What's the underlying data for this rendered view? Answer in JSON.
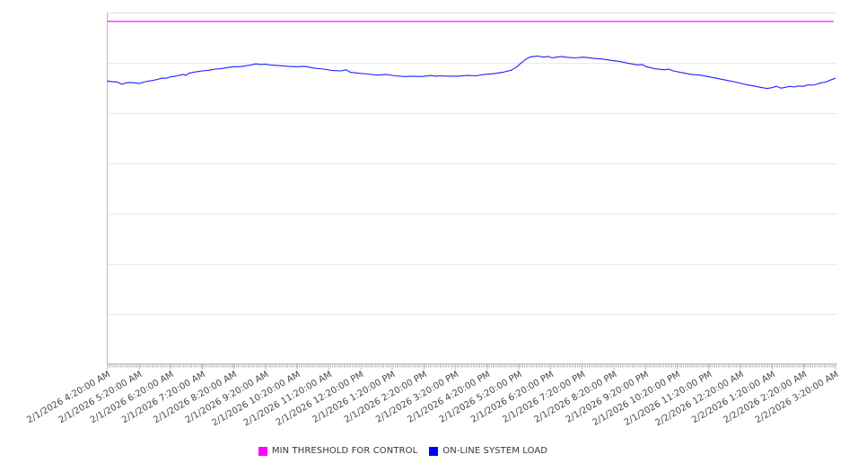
{
  "legend": {
    "items": [
      {
        "label": "MIN THRESHOLD FOR CONTROL",
        "color": "#ff00ff"
      },
      {
        "label": "ON-LINE SYSTEM LOAD",
        "color": "#0000ff"
      }
    ]
  },
  "chart_data": {
    "type": "line",
    "title": "",
    "legend_position": "bottom-center",
    "grid": "horizontal-only",
    "x_axis": {
      "label_rotation_deg": -30,
      "tick_labels": [
        "2/1/2026 4:20:00 AM",
        "2/1/2026 5:20:00 AM",
        "2/1/2026 6:20:00 AM",
        "2/1/2026 7:20:00 AM",
        "2/1/2026 8:20:00 AM",
        "2/1/2026 9:20:00 AM",
        "2/1/2026 10:20:00 AM",
        "2/1/2026 11:20:00 AM",
        "2/1/2026 12:20:00 PM",
        "2/1/2026 1:20:00 PM",
        "2/1/2026 2:20:00 PM",
        "2/1/2026 3:20:00 PM",
        "2/1/2026 4:20:00 PM",
        "2/1/2026 5:20:00 PM",
        "2/1/2026 6:20:00 PM",
        "2/1/2026 7:20:00 PM",
        "2/1/2026 8:20:00 PM",
        "2/1/2026 9:20:00 PM",
        "2/1/2026 10:20:00 PM",
        "2/1/2026 11:20:00 PM",
        "2/2/2026 12:20:00 AM",
        "2/2/2026 1:20:00 AM",
        "2/2/2026 2:20:00 AM",
        "2/2/2026 3:20:00 AM"
      ]
    },
    "y_axis": {
      "tick_labels": [],
      "gridline_count": 6,
      "range_pct": [
        0,
        100
      ],
      "note": "no visible y-axis labels; series values estimated as percent of plot height"
    },
    "series": [
      {
        "name": "MIN THRESHOLD FOR CONTROL",
        "type": "threshold-line",
        "color": "#ff00ff",
        "value_pct": 97.5
      },
      {
        "name": "ON-LINE SYSTEM LOAD",
        "type": "line",
        "color": "#0000ff",
        "points_xfrac_valuepct": [
          [
            0.0,
            80.5
          ],
          [
            0.007,
            80.3
          ],
          [
            0.014,
            80.2
          ],
          [
            0.02,
            79.6
          ],
          [
            0.026,
            80.0
          ],
          [
            0.032,
            80.1
          ],
          [
            0.038,
            80.0
          ],
          [
            0.044,
            79.8
          ],
          [
            0.05,
            80.2
          ],
          [
            0.057,
            80.5
          ],
          [
            0.063,
            80.7
          ],
          [
            0.069,
            81.0
          ],
          [
            0.075,
            81.3
          ],
          [
            0.081,
            81.3
          ],
          [
            0.087,
            81.7
          ],
          [
            0.094,
            81.9
          ],
          [
            0.1,
            82.2
          ],
          [
            0.105,
            82.4
          ],
          [
            0.108,
            82.1
          ],
          [
            0.112,
            82.7
          ],
          [
            0.118,
            83.0
          ],
          [
            0.124,
            83.2
          ],
          [
            0.131,
            83.4
          ],
          [
            0.137,
            83.5
          ],
          [
            0.143,
            83.7
          ],
          [
            0.149,
            83.9
          ],
          [
            0.155,
            84.0
          ],
          [
            0.161,
            84.2
          ],
          [
            0.167,
            84.4
          ],
          [
            0.174,
            84.6
          ],
          [
            0.18,
            84.6
          ],
          [
            0.186,
            84.7
          ],
          [
            0.192,
            84.9
          ],
          [
            0.198,
            85.1
          ],
          [
            0.204,
            85.4
          ],
          [
            0.211,
            85.2
          ],
          [
            0.217,
            85.3
          ],
          [
            0.223,
            85.1
          ],
          [
            0.235,
            84.9
          ],
          [
            0.248,
            84.7
          ],
          [
            0.26,
            84.6
          ],
          [
            0.272,
            84.7
          ],
          [
            0.284,
            84.2
          ],
          [
            0.297,
            83.9
          ],
          [
            0.309,
            83.5
          ],
          [
            0.321,
            83.4
          ],
          [
            0.328,
            83.7
          ],
          [
            0.334,
            83.0
          ],
          [
            0.346,
            82.7
          ],
          [
            0.358,
            82.5
          ],
          [
            0.371,
            82.2
          ],
          [
            0.383,
            82.4
          ],
          [
            0.395,
            82.0
          ],
          [
            0.408,
            81.8
          ],
          [
            0.42,
            81.9
          ],
          [
            0.432,
            81.8
          ],
          [
            0.445,
            82.1
          ],
          [
            0.451,
            81.9
          ],
          [
            0.457,
            82.0
          ],
          [
            0.469,
            81.9
          ],
          [
            0.481,
            81.9
          ],
          [
            0.494,
            82.1
          ],
          [
            0.506,
            82.0
          ],
          [
            0.518,
            82.4
          ],
          [
            0.531,
            82.6
          ],
          [
            0.543,
            83.0
          ],
          [
            0.555,
            83.6
          ],
          [
            0.562,
            84.5
          ],
          [
            0.568,
            85.6
          ],
          [
            0.574,
            86.6
          ],
          [
            0.58,
            87.3
          ],
          [
            0.586,
            87.5
          ],
          [
            0.592,
            87.6
          ],
          [
            0.599,
            87.3
          ],
          [
            0.605,
            87.5
          ],
          [
            0.611,
            87.1
          ],
          [
            0.617,
            87.3
          ],
          [
            0.623,
            87.5
          ],
          [
            0.629,
            87.3
          ],
          [
            0.642,
            87.1
          ],
          [
            0.654,
            87.3
          ],
          [
            0.666,
            87.0
          ],
          [
            0.679,
            86.8
          ],
          [
            0.691,
            86.4
          ],
          [
            0.703,
            86.1
          ],
          [
            0.715,
            85.6
          ],
          [
            0.728,
            85.1
          ],
          [
            0.734,
            85.2
          ],
          [
            0.74,
            84.6
          ],
          [
            0.752,
            84.0
          ],
          [
            0.765,
            83.7
          ],
          [
            0.771,
            83.9
          ],
          [
            0.777,
            83.4
          ],
          [
            0.789,
            82.9
          ],
          [
            0.802,
            82.4
          ],
          [
            0.814,
            82.2
          ],
          [
            0.826,
            81.7
          ],
          [
            0.839,
            81.2
          ],
          [
            0.851,
            80.7
          ],
          [
            0.863,
            80.2
          ],
          [
            0.875,
            79.6
          ],
          [
            0.888,
            79.1
          ],
          [
            0.9,
            78.6
          ],
          [
            0.906,
            78.4
          ],
          [
            0.912,
            78.6
          ],
          [
            0.919,
            79.0
          ],
          [
            0.925,
            78.5
          ],
          [
            0.931,
            78.7
          ],
          [
            0.937,
            79.0
          ],
          [
            0.943,
            78.8
          ],
          [
            0.949,
            79.1
          ],
          [
            0.956,
            79.0
          ],
          [
            0.962,
            79.4
          ],
          [
            0.968,
            79.3
          ],
          [
            0.974,
            79.6
          ],
          [
            0.98,
            80.0
          ],
          [
            0.986,
            80.2
          ],
          [
            0.993,
            80.8
          ],
          [
            1.0,
            81.3
          ]
        ]
      }
    ]
  },
  "colors": {
    "background": "#ffffff",
    "grid": "#e9e9e9",
    "top_border": "#e0e0e0",
    "axis": "#b8b8b8",
    "tick": "#c2c2c2",
    "axis_label_text": "#474747",
    "legend_text": "#383838"
  }
}
